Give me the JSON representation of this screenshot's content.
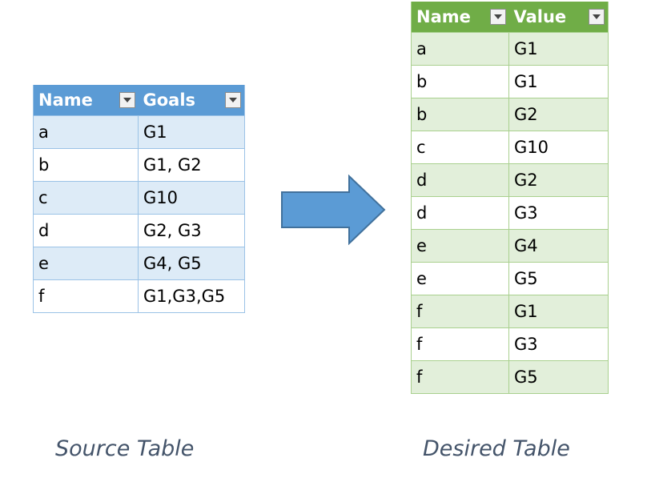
{
  "source_table": {
    "headers": [
      "Name",
      "Goals"
    ],
    "rows": [
      [
        "a",
        "G1"
      ],
      [
        "b",
        "G1, G2"
      ],
      [
        "c",
        "G10"
      ],
      [
        "d",
        "G2, G3"
      ],
      [
        "e",
        "G4, G5"
      ],
      [
        "f",
        "G1,G3,G5"
      ]
    ],
    "caption": "Source Table",
    "header_color": "#5b9bd5",
    "band_color": "#ddebf7"
  },
  "desired_table": {
    "headers": [
      "Name",
      "Value"
    ],
    "rows": [
      [
        "a",
        "G1"
      ],
      [
        "b",
        "G1"
      ],
      [
        "b",
        "G2"
      ],
      [
        "c",
        "G10"
      ],
      [
        "d",
        "G2"
      ],
      [
        "d",
        "G3"
      ],
      [
        "e",
        "G4"
      ],
      [
        "e",
        "G5"
      ],
      [
        "f",
        "G1"
      ],
      [
        "f",
        "G3"
      ],
      [
        "f",
        "G5"
      ]
    ],
    "caption": "Desired Table",
    "header_color": "#70ad47",
    "band_color": "#e2efda"
  },
  "arrow": {
    "icon": "right-arrow-icon",
    "color": "#5b9bd5"
  }
}
